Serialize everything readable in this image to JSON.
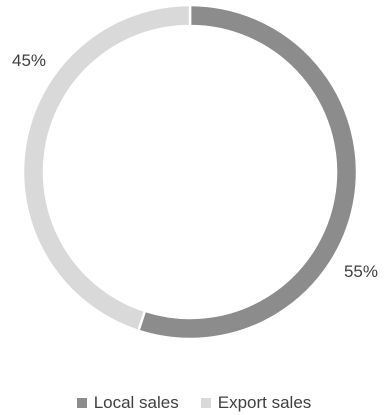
{
  "chart_data": {
    "type": "pie",
    "donut": true,
    "title": "",
    "categories": [
      "Local sales",
      "Export sales"
    ],
    "values": [
      55,
      45
    ],
    "value_unit": "%",
    "data_labels": [
      "55%",
      "45%"
    ],
    "colors": [
      "#8c8c8c",
      "#d9d9d9"
    ],
    "background_color": "#ffffff",
    "slice_border_color": "#ffffff",
    "legend_position": "bottom",
    "start_angle_deg": 0,
    "direction": "clockwise"
  }
}
